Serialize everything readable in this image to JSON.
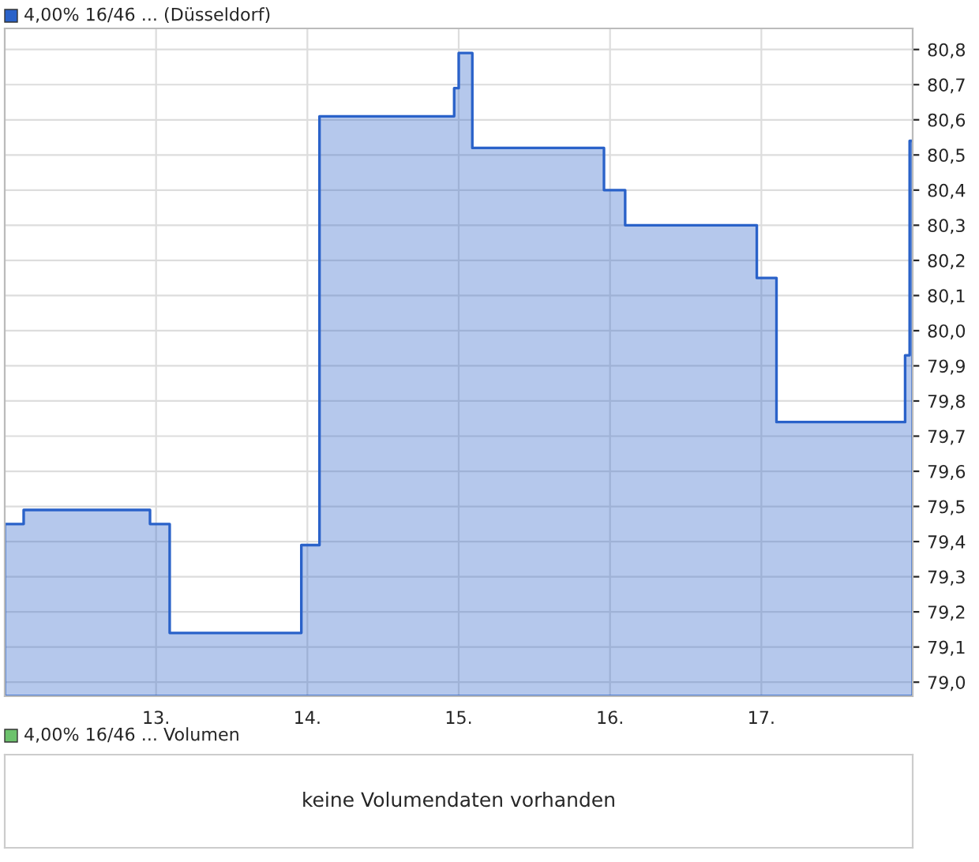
{
  "chart_data": [
    {
      "type": "area",
      "x": [
        12.0,
        12.125,
        12.96,
        13.09,
        13.96,
        14.08,
        14.97,
        15.0,
        15.09,
        15.96,
        16.1,
        16.97,
        17.1,
        17.95,
        17.98
      ],
      "series": [
        {
          "name": "4,00% 16/46 ... (Düsseldorf)",
          "color": "#2a62c9",
          "values": [
            79.45,
            79.49,
            79.45,
            79.14,
            79.39,
            80.61,
            80.69,
            80.79,
            80.52,
            80.4,
            80.3,
            80.15,
            79.74,
            79.93,
            80.54
          ]
        }
      ],
      "xlim": [
        12.0,
        18.0
      ],
      "xticks": [
        {
          "value": 13,
          "label": "13."
        },
        {
          "value": 14,
          "label": "14."
        },
        {
          "value": 15,
          "label": "15."
        },
        {
          "value": 16,
          "label": "16."
        },
        {
          "value": 17,
          "label": "17."
        }
      ],
      "ylim": [
        78.96,
        80.86
      ],
      "yticks": [
        {
          "value": 79.0,
          "label": "79,0"
        },
        {
          "value": 79.1,
          "label": "79,1"
        },
        {
          "value": 79.2,
          "label": "79,2"
        },
        {
          "value": 79.3,
          "label": "79,3"
        },
        {
          "value": 79.4,
          "label": "79,4"
        },
        {
          "value": 79.5,
          "label": "79,5"
        },
        {
          "value": 79.6,
          "label": "79,6"
        },
        {
          "value": 79.7,
          "label": "79,7"
        },
        {
          "value": 79.8,
          "label": "79,8"
        },
        {
          "value": 79.9,
          "label": "79,9"
        },
        {
          "value": 80.0,
          "label": "80,0"
        },
        {
          "value": 80.1,
          "label": "80,1"
        },
        {
          "value": 80.2,
          "label": "80,2"
        },
        {
          "value": 80.3,
          "label": "80,3"
        },
        {
          "value": 80.4,
          "label": "80,4"
        },
        {
          "value": 80.5,
          "label": "80,5"
        },
        {
          "value": 80.6,
          "label": "80,6"
        },
        {
          "value": 80.7,
          "label": "80,7"
        },
        {
          "value": 80.8,
          "label": "80,8"
        }
      ],
      "grid": true,
      "legend": "top left"
    },
    {
      "type": "other",
      "title": "4,00% 16/46 ... Volumen",
      "annotations": [
        "keine Volumendaten vorhanden"
      ]
    }
  ]
}
